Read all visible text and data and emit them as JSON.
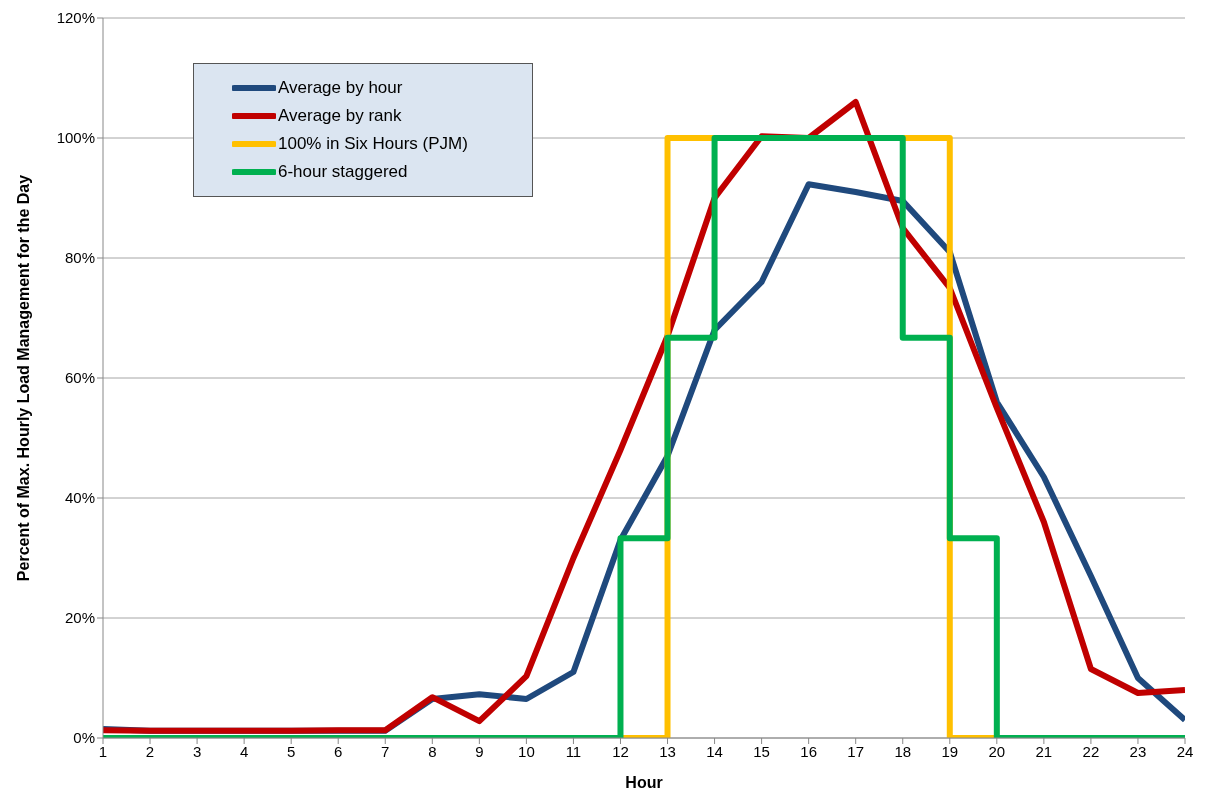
{
  "chart_data": {
    "type": "line",
    "xlabel": "Hour",
    "ylabel": "Percent of Max. Hourly Load Management for the Day",
    "x": [
      1,
      2,
      3,
      4,
      5,
      6,
      7,
      8,
      9,
      10,
      11,
      12,
      13,
      14,
      15,
      16,
      17,
      18,
      19,
      20,
      21,
      22,
      23,
      24
    ],
    "series": [
      {
        "name": "Average by hour",
        "color": "#1f497d",
        "values": [
          1.5,
          1.2,
          1.2,
          1.2,
          1.2,
          1.2,
          1.2,
          6.5,
          7.3,
          6.5,
          11,
          33,
          47,
          68,
          76,
          92.3,
          91,
          89.5,
          81,
          56,
          43.5,
          27,
          10,
          3
        ]
      },
      {
        "name": "Average by rank",
        "color": "#c00000",
        "values": [
          1.3,
          1.2,
          1.2,
          1.2,
          1.2,
          1.3,
          1.3,
          6.8,
          2.8,
          10.3,
          30,
          48,
          67,
          90,
          100.3,
          100,
          106,
          85,
          75,
          55,
          36,
          11.5,
          7.5,
          8
        ]
      },
      {
        "name": "100% in Six Hours (PJM)",
        "color": "#ffc000",
        "type": "step",
        "values": [
          null,
          null,
          null,
          null,
          null,
          null,
          null,
          null,
          null,
          null,
          null,
          0,
          100,
          100,
          null,
          null,
          null,
          100,
          0,
          0,
          null,
          null,
          null,
          null
        ]
      },
      {
        "name": "6-hour staggered",
        "color": "#00b050",
        "type": "step",
        "values": [
          0,
          0,
          0,
          0,
          0,
          0,
          0,
          0,
          0,
          0,
          0,
          33.3,
          66.7,
          100,
          100,
          100,
          100,
          66.7,
          33.3,
          0,
          0,
          0,
          0,
          0
        ]
      }
    ],
    "xlim": [
      1,
      24
    ],
    "xticks": [
      1,
      2,
      3,
      4,
      5,
      6,
      7,
      8,
      9,
      10,
      11,
      12,
      13,
      14,
      15,
      16,
      17,
      18,
      19,
      20,
      21,
      22,
      23,
      24
    ],
    "ylim": [
      0,
      120
    ],
    "yticks": [
      {
        "value": 0,
        "label": "0%"
      },
      {
        "value": 20,
        "label": "20%"
      },
      {
        "value": 40,
        "label": "40%"
      },
      {
        "value": 60,
        "label": "60%"
      },
      {
        "value": 80,
        "label": "80%"
      },
      {
        "value": 100,
        "label": "100%"
      },
      {
        "value": 120,
        "label": "120%"
      }
    ],
    "grid": "y",
    "legend": "top left",
    "marker": "none",
    "line_style": "solid"
  }
}
